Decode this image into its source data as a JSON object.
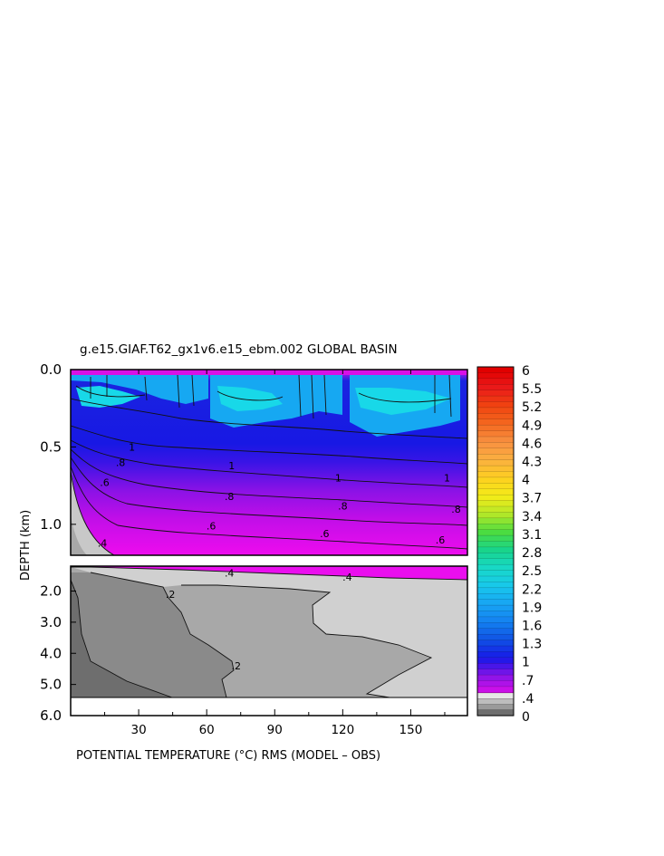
{
  "chart_data": {
    "type": "heatmap",
    "title": "g.e15.GIAF.T62_gx1v6.e15_ebm.002 GLOBAL BASIN",
    "xlabel": "POTENTIAL TEMPERATURE (°C) RMS (MODEL – OBS)",
    "ylabel": "DEPTH (km)",
    "xlim": [
      0,
      175
    ],
    "x_ticks": [
      30,
      60,
      90,
      120,
      150
    ],
    "upper_panel": {
      "ylim": [
        0.0,
        1.2
      ],
      "y_ticks": [
        "0.0",
        "0.5",
        "1.0"
      ],
      "y_tick_values": [
        0.0,
        0.5,
        1.0
      ]
    },
    "lower_panel": {
      "ylim": [
        1.2,
        6.0
      ],
      "y_ticks": [
        "2.0",
        "3.0",
        "4.0",
        "5.0",
        "6.0"
      ],
      "y_tick_values": [
        2.0,
        3.0,
        4.0,
        5.0,
        6.0
      ],
      "bottom_depth_km": 5.37
    },
    "contour_labels": [
      {
        "panel": "upper",
        "text": ".8",
        "x": 22,
        "y": 0.6
      },
      {
        "panel": "upper",
        "text": ".6",
        "x": 15,
        "y": 0.73
      },
      {
        "panel": "upper",
        "text": ".4",
        "x": 14,
        "y": 1.12
      },
      {
        "panel": "upper",
        "text": "1",
        "x": 27,
        "y": 0.5
      },
      {
        "panel": "upper",
        "text": ".8",
        "x": 70,
        "y": 0.82
      },
      {
        "panel": "upper",
        "text": ".6",
        "x": 62,
        "y": 1.01
      },
      {
        "panel": "upper",
        "text": "1",
        "x": 71,
        "y": 0.62
      },
      {
        "panel": "upper",
        "text": ".8",
        "x": 120,
        "y": 0.88
      },
      {
        "panel": "upper",
        "text": ".6",
        "x": 112,
        "y": 1.06
      },
      {
        "panel": "upper",
        "text": "1",
        "x": 118,
        "y": 0.7
      },
      {
        "panel": "upper",
        "text": ".8",
        "x": 170,
        "y": 0.9
      },
      {
        "panel": "upper",
        "text": ".6",
        "x": 163,
        "y": 1.1
      },
      {
        "panel": "upper",
        "text": "1",
        "x": 166,
        "y": 0.7
      },
      {
        "panel": "lower",
        "text": ".4",
        "x": 70,
        "y": 1.42
      },
      {
        "panel": "lower",
        "text": ".4",
        "x": 122,
        "y": 1.55
      },
      {
        "panel": "lower",
        "text": ".2",
        "x": 44,
        "y": 2.1
      },
      {
        "panel": "lower",
        "text": ".2",
        "x": 73,
        "y": 4.4
      }
    ],
    "colorbar": {
      "labels": [
        "6",
        "5.5",
        "5.2",
        "4.9",
        "4.6",
        "4.3",
        "4",
        "3.7",
        "3.4",
        "3.1",
        "2.8",
        "2.5",
        "2.2",
        "1.9",
        "1.6",
        "1.3",
        "1",
        ".7",
        ".4",
        "0"
      ],
      "colors": [
        "#e10000",
        "#ea1a1a",
        "#f04410",
        "#f46820",
        "#f89040",
        "#fbb040",
        "#fdd020",
        "#f4ec18",
        "#b4e828",
        "#4cdc40",
        "#18d48c",
        "#18d8c8",
        "#18c8ec",
        "#18a4f4",
        "#1480f0",
        "#1050e4",
        "#1818e8",
        "#8c14e8",
        "#e20ee8",
        "#6e6e6e"
      ]
    }
  }
}
